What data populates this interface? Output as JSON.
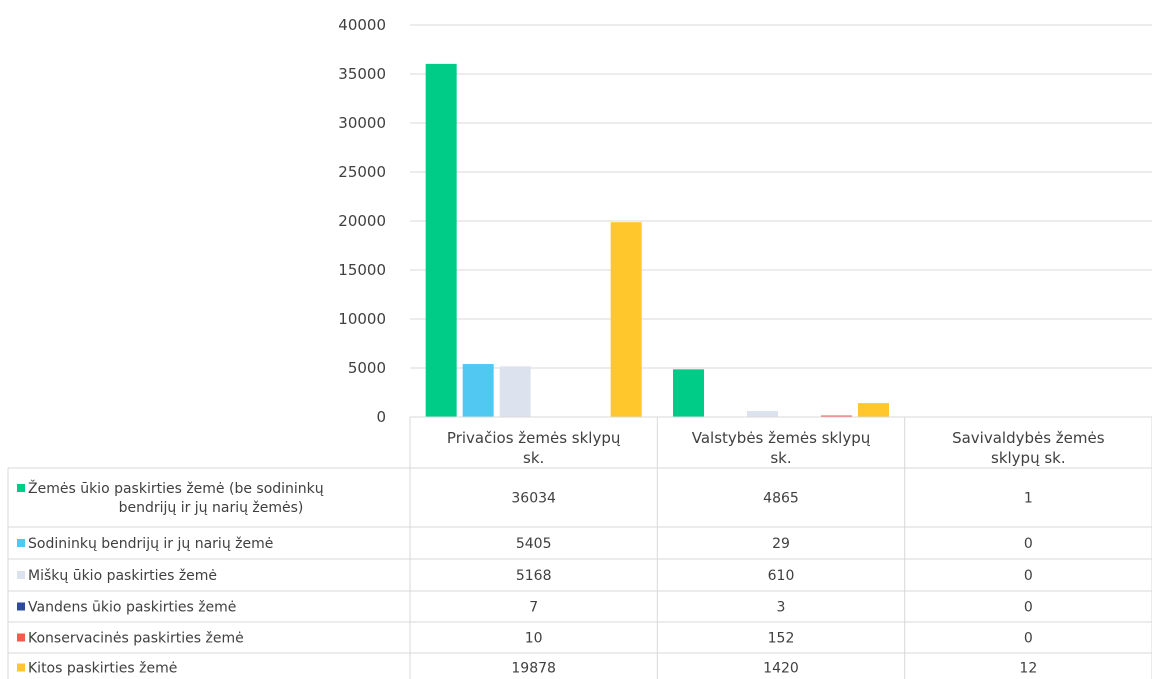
{
  "chart_data": {
    "type": "bar",
    "categories": [
      [
        "Privačios žemės sklypų",
        "sk."
      ],
      [
        "Valstybės žemės sklypų",
        "sk."
      ],
      [
        "Savivaldybės žemės",
        "sklypų sk."
      ]
    ],
    "series": [
      {
        "name": [
          "Žemės ūkio paskirties žemė (be sodininkų",
          "bendrijų ir jų narių žemės)"
        ],
        "color": "#00cc88",
        "values": [
          36034,
          4865,
          1
        ]
      },
      {
        "name": [
          "Sodininkų bendrijų ir jų narių žemė"
        ],
        "color": "#50c8f2",
        "values": [
          5405,
          29,
          0
        ]
      },
      {
        "name": [
          "Miškų ūkio paskirties žemė"
        ],
        "color": "#dce3ef",
        "values": [
          5168,
          610,
          0
        ]
      },
      {
        "name": [
          "Vandens ūkio paskirties žemė"
        ],
        "color": "#2e4a9e",
        "values": [
          7,
          3,
          0
        ]
      },
      {
        "name": [
          "Konservacinės paskirties žemė"
        ],
        "color": "#f25c4a",
        "values": [
          10,
          152,
          0
        ]
      },
      {
        "name": [
          "Kitos paskirties žemė"
        ],
        "color": "#ffc72c",
        "values": [
          19878,
          1420,
          12
        ]
      }
    ],
    "yticks": [
      "0",
      "5000",
      "10000",
      "15000",
      "20000",
      "25000",
      "30000",
      "35000",
      "40000"
    ],
    "ylim": [
      0,
      40000
    ],
    "grid": true,
    "legend": "data-table"
  }
}
